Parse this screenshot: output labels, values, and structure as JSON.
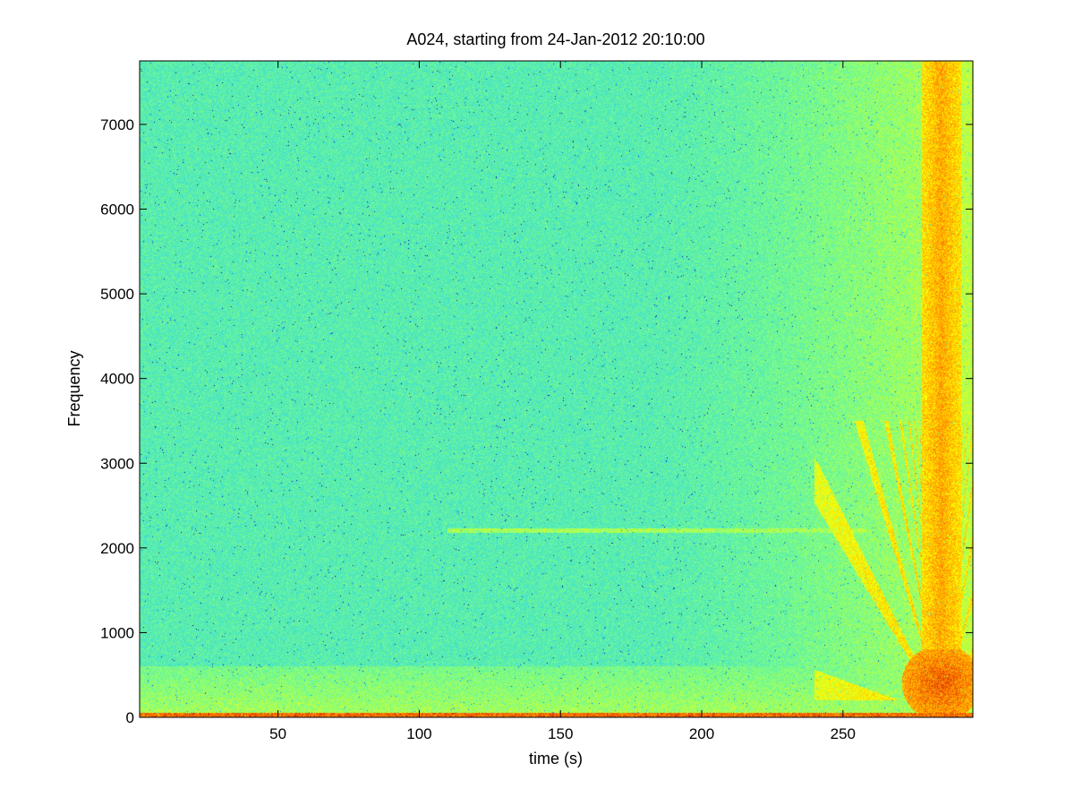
{
  "chart_data": {
    "type": "heatmap",
    "title": "A024, starting from 24-Jan-2012 20:10:00",
    "xlabel": "time (s)",
    "ylabel": "Frequency",
    "xlim": [
      1,
      296
    ],
    "ylim": [
      0,
      7750
    ],
    "xticks": [
      50,
      100,
      150,
      200,
      250
    ],
    "yticks": [
      0,
      1000,
      2000,
      3000,
      4000,
      5000,
      6000,
      7000
    ],
    "grid": false,
    "colormap": [
      "#00008f",
      "#0080ff",
      "#40e0d0",
      "#80ff80",
      "#ffff00",
      "#ff8000",
      "#c00000"
    ],
    "background_level": 0.4,
    "features": [
      {
        "kind": "low-frequency-band",
        "x_range": [
          1,
          296
        ],
        "y_range": [
          0,
          600
        ],
        "level": 0.55
      },
      {
        "kind": "bottom-line",
        "x_range": [
          1,
          296
        ],
        "y_range": [
          0,
          50
        ],
        "level": 0.92
      },
      {
        "kind": "broadband-increase",
        "x_range": [
          180,
          296
        ],
        "y_range": [
          0,
          7750
        ],
        "level": 0.58
      },
      {
        "kind": "tonal-line",
        "x_range": [
          110,
          260
        ],
        "frequency": 2200,
        "level": 0.6
      },
      {
        "kind": "hot-column",
        "x_range": [
          278,
          292
        ],
        "y_range": [
          0,
          7750
        ],
        "level": 0.78
      },
      {
        "kind": "harmonic-fan",
        "x_range": [
          240,
          295
        ],
        "y_range": [
          0,
          3500
        ],
        "level": 0.75
      },
      {
        "kind": "low-freq-hotspot",
        "x_range": [
          270,
          296
        ],
        "y_range": [
          0,
          800
        ],
        "level": 0.88
      }
    ]
  }
}
